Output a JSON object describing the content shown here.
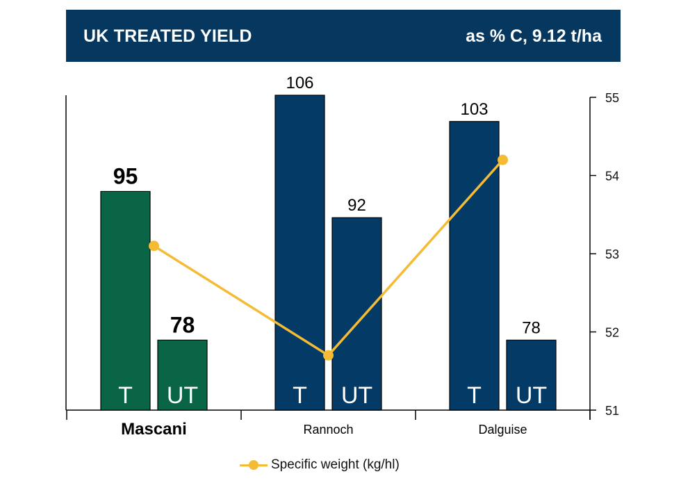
{
  "header": {
    "title": "UK TREATED YIELD",
    "subtitle": "as % C, 9.12 t/ha"
  },
  "colors": {
    "header_bg": "#06375f",
    "highlight_bar": "#0a6446",
    "bar": "#033a66",
    "line": "#f5bb34"
  },
  "chart_data": {
    "type": "bar",
    "title": "UK TREATED YIELD",
    "subtitle": "as % C, 9.12 t/ha",
    "categories": [
      "Mascani",
      "Rannoch",
      "Dalguise"
    ],
    "highlighted_category": "Mascani",
    "bar_labels": [
      "T",
      "UT"
    ],
    "series": [
      {
        "name": "T",
        "label": "T",
        "values": [
          95,
          106,
          103
        ]
      },
      {
        "name": "UT",
        "label": "UT",
        "values": [
          78,
          92,
          78
        ]
      }
    ],
    "line_series": {
      "name": "Specific weight (kg/hl)",
      "axis": "right",
      "values": [
        53.1,
        51.7,
        54.2
      ]
    },
    "left_axis": {
      "visible_ticks": false,
      "ylim": [
        70,
        106
      ]
    },
    "right_axis": {
      "ylim": [
        51,
        55
      ],
      "ticks": [
        "51",
        "52",
        "53",
        "54",
        "55"
      ]
    },
    "legend": {
      "items": [
        "Specific weight (kg/hl)"
      ],
      "position": "bottom"
    },
    "xlabel": "",
    "ylabel": "",
    "grid": false
  }
}
